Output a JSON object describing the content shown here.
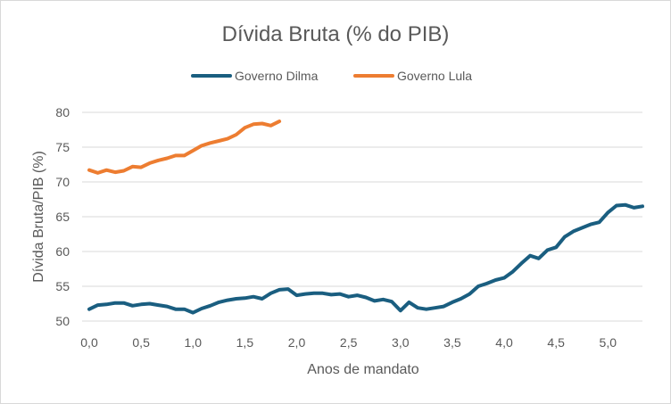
{
  "chart_data": {
    "type": "line",
    "title": "Dívida Bruta (% do PIB)",
    "xlabel": "Anos de mandato",
    "ylabel": "Dívida Bruta/PIB (%)",
    "xlim": [
      0,
      5.333
    ],
    "ylim": [
      50,
      80
    ],
    "xticks": [
      0,
      0.5,
      1.0,
      1.5,
      2.0,
      2.5,
      3.0,
      3.5,
      4.0,
      4.5,
      5.0
    ],
    "xtick_labels": [
      "0,0",
      "0,5",
      "1,0",
      "1,5",
      "2,0",
      "2,5",
      "3,0",
      "3,5",
      "4,0",
      "4,5",
      "5,0"
    ],
    "yticks": [
      50,
      55,
      60,
      65,
      70,
      75,
      80
    ],
    "ytick_labels": [
      "50",
      "55",
      "60",
      "65",
      "70",
      "75",
      "80"
    ],
    "grid": true,
    "legend_position": "top",
    "series": [
      {
        "name": "Governo Dilma",
        "color": "#1a5e80",
        "x": [
          0.0,
          0.083,
          0.167,
          0.25,
          0.333,
          0.417,
          0.5,
          0.583,
          0.667,
          0.75,
          0.833,
          0.917,
          1.0,
          1.083,
          1.167,
          1.25,
          1.333,
          1.417,
          1.5,
          1.583,
          1.667,
          1.75,
          1.833,
          1.917,
          2.0,
          2.083,
          2.167,
          2.25,
          2.333,
          2.417,
          2.5,
          2.583,
          2.667,
          2.75,
          2.833,
          2.917,
          3.0,
          3.083,
          3.167,
          3.25,
          3.333,
          3.417,
          3.5,
          3.583,
          3.667,
          3.75,
          3.833,
          3.917,
          4.0,
          4.083,
          4.167,
          4.25,
          4.333,
          4.417,
          4.5,
          4.583,
          4.667,
          4.75,
          4.833,
          4.917,
          5.0,
          5.083,
          5.167,
          5.25,
          5.333
        ],
        "values": [
          51.7,
          52.3,
          52.4,
          52.6,
          52.6,
          52.2,
          52.4,
          52.5,
          52.3,
          52.1,
          51.7,
          51.7,
          51.2,
          51.8,
          52.2,
          52.7,
          53.0,
          53.2,
          53.3,
          53.5,
          53.2,
          54.0,
          54.5,
          54.6,
          53.7,
          53.9,
          54.0,
          54.0,
          53.8,
          53.9,
          53.5,
          53.7,
          53.4,
          52.9,
          53.1,
          52.8,
          51.5,
          52.7,
          51.9,
          51.7,
          51.9,
          52.1,
          52.7,
          53.2,
          53.9,
          55.0,
          55.4,
          55.9,
          56.2,
          57.1,
          58.3,
          59.4,
          59.0,
          60.2,
          60.6,
          62.1,
          62.9,
          63.4,
          63.9,
          64.2,
          65.6,
          66.6,
          66.7,
          66.3,
          66.5
        ]
      },
      {
        "name": "Governo Lula",
        "color": "#ed7d31",
        "x": [
          0.0,
          0.083,
          0.167,
          0.25,
          0.333,
          0.417,
          0.5,
          0.583,
          0.667,
          0.75,
          0.833,
          0.917,
          1.0,
          1.083,
          1.167,
          1.25,
          1.333,
          1.417,
          1.5,
          1.583,
          1.667,
          1.75,
          1.833
        ],
        "values": [
          71.7,
          71.3,
          71.7,
          71.4,
          71.6,
          72.2,
          72.1,
          72.7,
          73.1,
          73.4,
          73.8,
          73.8,
          74.5,
          75.2,
          75.6,
          75.9,
          76.2,
          76.8,
          77.8,
          78.3,
          78.4,
          78.1,
          78.7
        ]
      }
    ]
  }
}
